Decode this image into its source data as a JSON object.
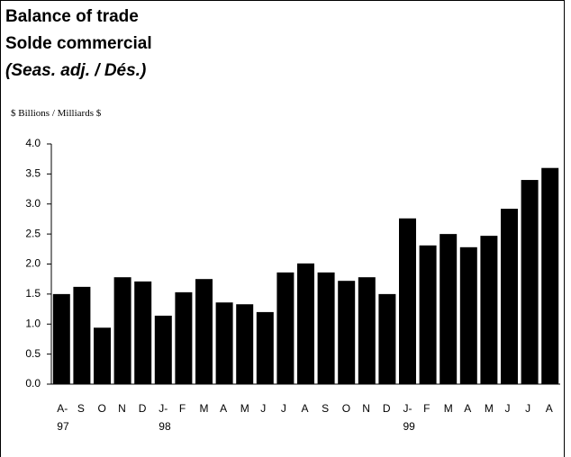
{
  "chart_data": {
    "type": "bar",
    "title": "Balance of trade",
    "subtitle": "Solde commercial",
    "note": "(Seas. adj. / Dés.)",
    "y_axis_label": "$ Billions / Milliards $",
    "categories": [
      "A-\n97",
      "S",
      "O",
      "N",
      "D",
      "J-\n98",
      "F",
      "M",
      "A",
      "M",
      "J",
      "J",
      "A",
      "S",
      "O",
      "N",
      "D",
      "J-\n99",
      "F",
      "M",
      "A",
      "M",
      "J",
      "J",
      "A"
    ],
    "values": [
      1.5,
      1.62,
      0.94,
      1.78,
      1.71,
      1.14,
      1.53,
      1.75,
      1.36,
      1.33,
      1.2,
      1.86,
      2.01,
      1.86,
      1.72,
      1.78,
      1.5,
      2.76,
      2.31,
      2.5,
      2.28,
      2.47,
      2.92,
      3.4,
      3.6
    ],
    "color": "#000000",
    "ylim": [
      0,
      4
    ],
    "yticks": [
      {
        "value": 0,
        "label": "0.0"
      },
      0.5,
      {
        "value": 1,
        "label": "1.0"
      },
      1.5,
      {
        "value": 2,
        "label": "2.0"
      },
      2.5,
      {
        "value": 3,
        "label": "3.0"
      },
      3.5,
      {
        "value": 4,
        "label": "4.0"
      }
    ],
    "grid": false
  }
}
